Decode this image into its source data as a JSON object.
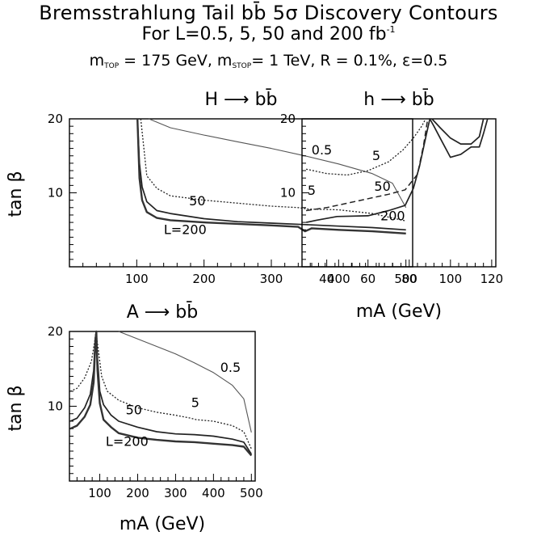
{
  "header": {
    "title_line1": "Bremsstrahlung Tail bb̄ 5σ Discovery Contours",
    "title_line2_prefix": "For L=0.5, 5, 50 and 200 fb",
    "title_line2_sup": "-1",
    "params_m": "m",
    "params_top_sub": "TOP",
    "params_mid": " = 175 GeV, m",
    "params_stop_sub": "STOP",
    "params_tail": "= 1 TeV, R = 0.1%, ε=0.5"
  },
  "chart_data": [
    {
      "type": "line",
      "title": "H ⟶ bb̄",
      "xlabel": "",
      "ylabel": "tan β",
      "xlim": [
        0,
        510
      ],
      "ylim": [
        0,
        20
      ],
      "xticks": [
        100,
        200,
        300,
        400,
        500
      ],
      "yticks": [
        10,
        20
      ],
      "grid": false,
      "series": [
        {
          "name": "0.5",
          "style": "solid-thin",
          "x": [
            118,
            150,
            200,
            250,
            300,
            350,
            400,
            450,
            480,
            500
          ],
          "y": [
            20,
            18.8,
            17.8,
            16.9,
            16.0,
            15.0,
            13.9,
            12.6,
            11.3,
            8.0
          ]
        },
        {
          "name": "5",
          "style": "dotted",
          "x": [
            106,
            115,
            130,
            150,
            200,
            250,
            300,
            340,
            355,
            400,
            450,
            500
          ],
          "y": [
            20,
            12.3,
            10.6,
            9.6,
            9.0,
            8.6,
            8.2,
            8.0,
            7.8,
            7.7,
            7.2,
            6.2
          ]
        },
        {
          "name": "50",
          "style": "solid",
          "x": [
            101,
            104,
            108,
            115,
            130,
            150,
            200,
            250,
            300,
            350,
            400,
            450,
            500
          ],
          "y": [
            20,
            14.0,
            10.8,
            8.8,
            7.6,
            7.2,
            6.5,
            6.1,
            5.9,
            5.7,
            5.5,
            5.3,
            5.0
          ]
        },
        {
          "name": "L=200",
          "style": "solid-thick",
          "x": [
            101,
            104,
            108,
            115,
            130,
            150,
            200,
            250,
            300,
            340,
            350,
            360,
            400,
            450,
            500
          ],
          "y": [
            20,
            12.0,
            9.0,
            7.4,
            6.6,
            6.3,
            6.0,
            5.8,
            5.6,
            5.4,
            4.8,
            5.2,
            5.0,
            4.8,
            4.5
          ]
        }
      ],
      "annotations": [
        {
          "text": "0.5",
          "x": 375,
          "y": 15.2
        },
        {
          "text": "5",
          "x": 360,
          "y": 9.7
        },
        {
          "text": "50",
          "x": 190,
          "y": 8.3
        },
        {
          "text": "L=200",
          "x": 172,
          "y": 4.4
        }
      ]
    },
    {
      "type": "line",
      "title": "h ⟶ bb̄",
      "xlabel": "mA (GeV)",
      "ylabel": "",
      "xlim": [
        28,
        122
      ],
      "ylim": [
        0,
        20
      ],
      "xticks": [
        40,
        60,
        80,
        100,
        120
      ],
      "yticks": [
        10,
        20
      ],
      "grid": false,
      "series": [
        {
          "name": "5",
          "style": "dotted",
          "x": [
            30,
            40,
            50,
            60,
            70,
            77,
            82,
            86,
            88
          ],
          "y": [
            13.2,
            12.6,
            12.4,
            13.0,
            14.2,
            15.8,
            17.4,
            19.0,
            20
          ]
        },
        {
          "name": "50",
          "style": "dashed",
          "x": [
            30,
            40,
            50,
            60,
            70,
            78,
            84,
            87,
            89
          ],
          "y": [
            7.6,
            8.0,
            8.6,
            9.2,
            9.8,
            10.4,
            12.5,
            16.5,
            20
          ]
        },
        {
          "name": "200",
          "style": "solid",
          "x": [
            30,
            35,
            45,
            60,
            70,
            78,
            82,
            85,
            88,
            90,
            92,
            95,
            100,
            105,
            110,
            114,
            116,
            118
          ],
          "y": [
            6.0,
            6.3,
            6.8,
            6.9,
            7.6,
            8.3,
            10.6,
            13.6,
            17.5,
            20,
            19.0,
            17.4,
            14.8,
            15.2,
            16.2,
            16.2,
            18.0,
            20
          ]
        },
        {
          "name": "200b",
          "style": "solid",
          "x": [
            91,
            95,
            100,
            105,
            110,
            114,
            116
          ],
          "y": [
            20,
            18.8,
            17.4,
            16.6,
            16.6,
            17.6,
            20
          ]
        }
      ],
      "annotations": [
        {
          "text": "5",
          "x": 64,
          "y": 14.4
        },
        {
          "text": "50",
          "x": 67,
          "y": 10.3
        },
        {
          "text": "200",
          "x": 72,
          "y": 6.3
        }
      ]
    },
    {
      "type": "line",
      "title": "A ⟶ bb̄",
      "xlabel": "mA (GeV)",
      "ylabel": "tan β",
      "xlim": [
        20,
        510
      ],
      "ylim": [
        0,
        20
      ],
      "xticks": [
        100,
        200,
        300,
        400,
        500
      ],
      "yticks": [
        10,
        20
      ],
      "grid": false,
      "series": [
        {
          "name": "0.5",
          "style": "solid-thin",
          "x": [
            150,
            200,
            250,
            300,
            350,
            400,
            450,
            480,
            500
          ],
          "y": [
            20,
            19.0,
            18.0,
            17.0,
            15.8,
            14.5,
            12.8,
            11.0,
            6.5
          ]
        },
        {
          "name": "5",
          "style": "dotted",
          "x": [
            22,
            40,
            60,
            78,
            86,
            90,
            95,
            105,
            120,
            150,
            200,
            250,
            300,
            340,
            355,
            400,
            450,
            480,
            500
          ],
          "y": [
            12.0,
            12.4,
            13.8,
            16.0,
            18.5,
            20,
            18.0,
            14.0,
            12.0,
            10.8,
            9.8,
            9.2,
            8.8,
            8.4,
            8.2,
            8.0,
            7.4,
            6.6,
            4.3
          ]
        },
        {
          "name": "50",
          "style": "solid",
          "x": [
            22,
            40,
            60,
            75,
            84,
            88,
            91,
            94,
            100,
            110,
            130,
            150,
            200,
            250,
            300,
            350,
            400,
            450,
            480,
            500
          ],
          "y": [
            8.0,
            8.4,
            9.8,
            11.6,
            14.8,
            19.0,
            20,
            16.4,
            12.0,
            10.2,
            8.8,
            8.0,
            7.2,
            6.6,
            6.3,
            6.2,
            6.0,
            5.6,
            5.2,
            3.6
          ]
        },
        {
          "name": "L=200",
          "style": "solid-thick",
          "x": [
            22,
            40,
            60,
            75,
            84,
            88,
            91,
            94,
            100,
            110,
            130,
            150,
            200,
            250,
            300,
            350,
            400,
            450,
            480,
            500
          ],
          "y": [
            7.0,
            7.4,
            8.6,
            10.2,
            13.2,
            18.0,
            20,
            14.8,
            10.4,
            8.2,
            7.2,
            6.4,
            5.8,
            5.5,
            5.3,
            5.2,
            5.0,
            4.8,
            4.6,
            3.4
          ]
        }
      ],
      "annotations": [
        {
          "text": "0.5",
          "x": 445,
          "y": 14.6
        },
        {
          "text": "5",
          "x": 352,
          "y": 9.9
        },
        {
          "text": "50",
          "x": 190,
          "y": 8.9
        },
        {
          "text": "L=200",
          "x": 172,
          "y": 4.7
        }
      ]
    }
  ]
}
